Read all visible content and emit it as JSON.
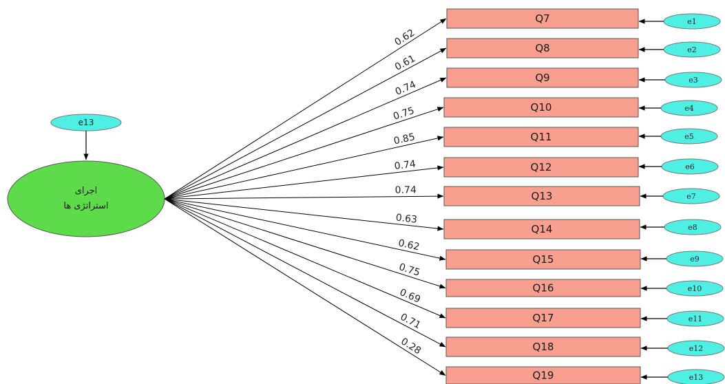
{
  "latent": {
    "label_line1": "اجرای",
    "label_line2": "استراتژی ها",
    "fill": "#5ddb4a",
    "error_label": "e13"
  },
  "colors": {
    "box_fill": "#f99f8f",
    "error_fill": "#4fefe4",
    "line": "#000000"
  },
  "indicators": [
    {
      "label": "Q7",
      "error": "e1",
      "loading": "0.62"
    },
    {
      "label": "Q8",
      "error": "e2",
      "loading": "0.61"
    },
    {
      "label": "Q9",
      "error": "e3",
      "loading": "0.74"
    },
    {
      "label": "Q10",
      "error": "e4",
      "loading": "0.75"
    },
    {
      "label": "Q11",
      "error": "e5",
      "loading": "0.85"
    },
    {
      "label": "Q12",
      "error": "e6",
      "loading": "0.74"
    },
    {
      "label": "Q13",
      "error": "e7",
      "loading": "0.74"
    },
    {
      "label": "Q14",
      "error": "e8",
      "loading": "0.63"
    },
    {
      "label": "Q15",
      "error": "e9",
      "loading": "0.62"
    },
    {
      "label": "Q16",
      "error": "e10",
      "loading": "0.75"
    },
    {
      "label": "Q17",
      "error": "e11",
      "loading": "0.69"
    },
    {
      "label": "Q18",
      "error": "e12",
      "loading": "0.71"
    },
    {
      "label": "Q19",
      "error": "e13",
      "loading": "0.28"
    }
  ]
}
